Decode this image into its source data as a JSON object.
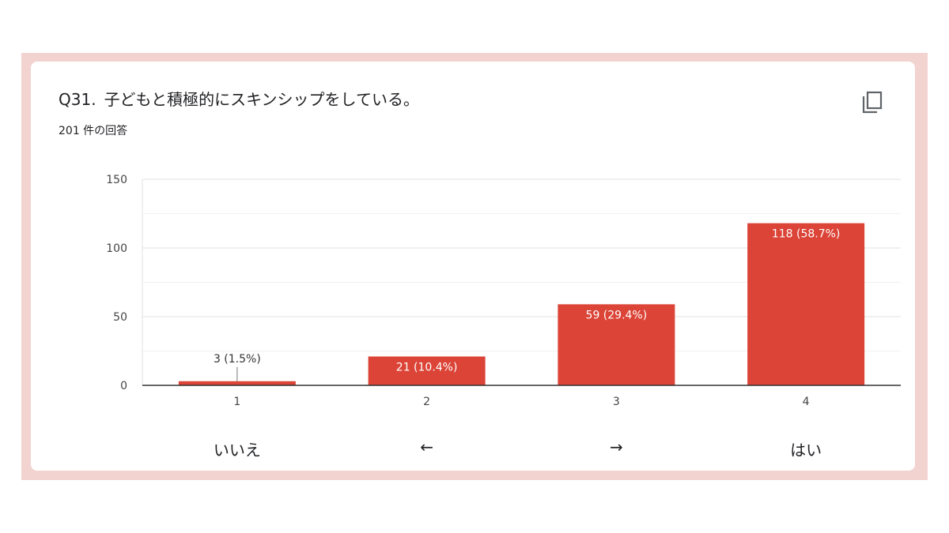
{
  "question": {
    "number": "Q31.",
    "text": "子どもと積極的にスキンシップをしている。",
    "responses": "201 件の回答"
  },
  "icons": {
    "copy": "copy-icon"
  },
  "colors": {
    "bar": "#db4437",
    "frame": "#f2d3d0",
    "grid": "#e0e0e0",
    "axis": "#333333"
  },
  "chart_data": {
    "type": "bar",
    "categories": [
      "1",
      "2",
      "3",
      "4"
    ],
    "values": [
      3,
      21,
      59,
      118
    ],
    "data_labels": [
      "3 (1.5%)",
      "21 (10.4%)",
      "59 (29.4%)",
      "118 (58.7%)"
    ],
    "yticks": [
      0,
      50,
      100,
      150
    ],
    "ylim": [
      0,
      150
    ],
    "grid": true,
    "title": "",
    "xlabel": "",
    "ylabel": ""
  },
  "scale_labels": [
    "いいえ",
    "←",
    "→",
    "はい"
  ]
}
